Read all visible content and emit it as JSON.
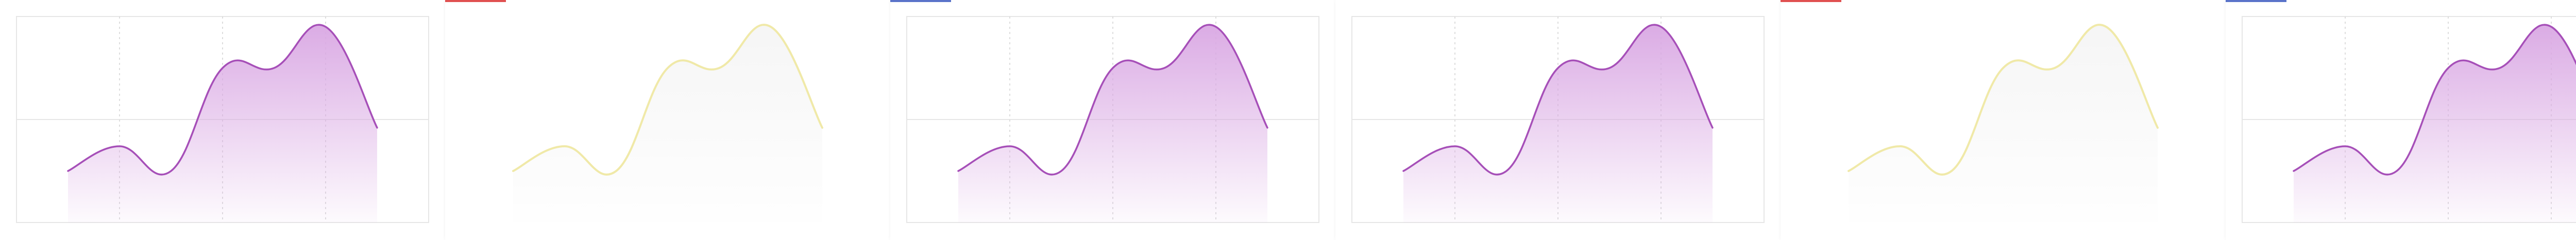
{
  "chart_data": [
    {
      "type": "area",
      "x": [
        0,
        1,
        2,
        3,
        4,
        5,
        6
      ],
      "values": [
        2.5,
        3.7,
        2.5,
        7.5,
        7.5,
        9.5,
        4.6
      ],
      "ylim": [
        0,
        10
      ],
      "grid": true,
      "line_color": "#a64fb8",
      "fill_color": "#d9a7e3",
      "faded": false,
      "marker_color": ""
    },
    {
      "type": "area",
      "x": [
        0,
        1,
        2,
        3,
        4,
        5,
        6
      ],
      "values": [
        2.5,
        3.7,
        2.5,
        7.5,
        7.5,
        9.5,
        4.6
      ],
      "ylim": [
        0,
        10
      ],
      "grid": false,
      "line_color": "#f0e9a8",
      "fill_color": "#eeeeee",
      "faded": true,
      "marker_color": "#e05050"
    },
    {
      "type": "area",
      "x": [
        0,
        1,
        2,
        3,
        4,
        5,
        6
      ],
      "values": [
        2.5,
        3.7,
        2.5,
        7.5,
        7.5,
        9.5,
        4.6
      ],
      "ylim": [
        0,
        10
      ],
      "grid": true,
      "line_color": "#a64fb8",
      "fill_color": "#d9a7e3",
      "faded": false,
      "marker_color": "#5a73c9"
    },
    {
      "type": "area",
      "x": [
        0,
        1,
        2,
        3,
        4,
        5,
        6
      ],
      "values": [
        2.5,
        3.7,
        2.5,
        7.5,
        7.5,
        9.5,
        4.6
      ],
      "ylim": [
        0,
        10
      ],
      "grid": true,
      "line_color": "#a64fb8",
      "fill_color": "#d9a7e3",
      "faded": false,
      "marker_color": ""
    },
    {
      "type": "area",
      "x": [
        0,
        1,
        2,
        3,
        4,
        5,
        6
      ],
      "values": [
        2.5,
        3.7,
        2.5,
        7.5,
        7.5,
        9.5,
        4.6
      ],
      "ylim": [
        0,
        10
      ],
      "grid": false,
      "line_color": "#f0e9a8",
      "fill_color": "#eeeeee",
      "faded": true,
      "marker_color": "#e05050"
    },
    {
      "type": "area",
      "x": [
        0,
        1,
        2,
        3,
        4,
        5,
        6
      ],
      "values": [
        2.5,
        3.7,
        2.5,
        7.5,
        7.5,
        9.5,
        4.6
      ],
      "ylim": [
        0,
        10
      ],
      "grid": true,
      "line_color": "#a64fb8",
      "fill_color": "#d9a7e3",
      "faded": false,
      "marker_color": "#5a73c9"
    }
  ]
}
